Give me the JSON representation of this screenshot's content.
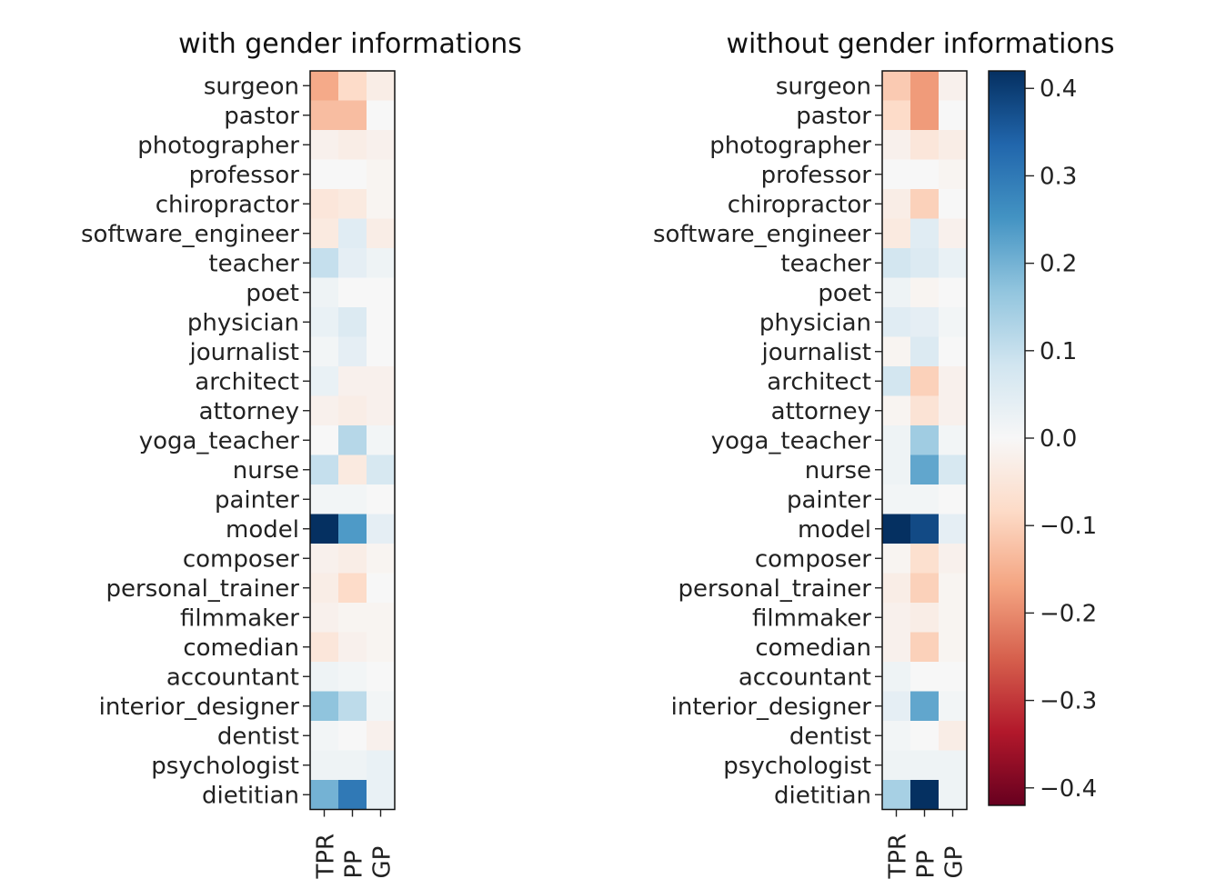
{
  "chart_data": [
    {
      "type": "heatmap",
      "title": "with gender informations",
      "x": [
        "TPR",
        "PP",
        "GP"
      ],
      "y": [
        "surgeon",
        "pastor",
        "photographer",
        "professor",
        "chiropractor",
        "software_engineer",
        "teacher",
        "poet",
        "physician",
        "journalist",
        "architect",
        "attorney",
        "yoga_teacher",
        "nurse",
        "painter",
        "model",
        "composer",
        "personal_trainer",
        "filmmaker",
        "comedian",
        "accountant",
        "interior_designer",
        "dentist",
        "psychologist",
        "dietitian"
      ],
      "values": [
        [
          -0.16,
          -0.08,
          -0.03
        ],
        [
          -0.13,
          -0.13,
          0.0
        ],
        [
          -0.02,
          -0.03,
          -0.02
        ],
        [
          0.0,
          0.0,
          -0.01
        ],
        [
          -0.05,
          -0.04,
          -0.01
        ],
        [
          -0.04,
          0.05,
          -0.03
        ],
        [
          0.1,
          0.04,
          0.02
        ],
        [
          0.02,
          0.0,
          0.0
        ],
        [
          0.03,
          0.06,
          0.0
        ],
        [
          0.01,
          0.04,
          0.0
        ],
        [
          0.03,
          -0.02,
          -0.02
        ],
        [
          -0.02,
          -0.03,
          -0.02
        ],
        [
          0.0,
          0.12,
          0.01
        ],
        [
          0.1,
          -0.04,
          0.07
        ],
        [
          0.01,
          0.01,
          0.0
        ],
        [
          0.42,
          0.24,
          0.04
        ],
        [
          -0.02,
          -0.03,
          -0.01
        ],
        [
          -0.03,
          -0.08,
          0.0
        ],
        [
          -0.02,
          -0.01,
          -0.01
        ],
        [
          -0.05,
          -0.02,
          -0.01
        ],
        [
          0.02,
          0.01,
          0.0
        ],
        [
          0.17,
          0.11,
          0.01
        ],
        [
          0.01,
          0.0,
          -0.02
        ],
        [
          0.02,
          0.02,
          0.03
        ],
        [
          0.2,
          0.3,
          0.03
        ]
      ],
      "colorbar": false,
      "clim": [
        -0.42,
        0.42
      ],
      "cmap": "RdBu"
    },
    {
      "type": "heatmap",
      "title": "without gender informations",
      "x": [
        "TPR",
        "PP",
        "GP"
      ],
      "y": [
        "surgeon",
        "pastor",
        "photographer",
        "professor",
        "chiropractor",
        "software_engineer",
        "teacher",
        "poet",
        "physician",
        "journalist",
        "architect",
        "attorney",
        "yoga_teacher",
        "nurse",
        "painter",
        "model",
        "composer",
        "personal_trainer",
        "filmmaker",
        "comedian",
        "accountant",
        "interior_designer",
        "dentist",
        "psychologist",
        "dietitian"
      ],
      "values": [
        [
          -0.11,
          -0.18,
          -0.02
        ],
        [
          -0.08,
          -0.18,
          0.0
        ],
        [
          -0.02,
          -0.05,
          -0.03
        ],
        [
          0.0,
          0.0,
          -0.01
        ],
        [
          -0.03,
          -0.1,
          0.0
        ],
        [
          -0.04,
          0.05,
          -0.02
        ],
        [
          0.08,
          0.06,
          0.03
        ],
        [
          0.02,
          -0.01,
          0.0
        ],
        [
          0.05,
          0.04,
          0.01
        ],
        [
          -0.01,
          0.06,
          0.0
        ],
        [
          0.08,
          -0.1,
          -0.02
        ],
        [
          -0.01,
          -0.06,
          -0.02
        ],
        [
          0.02,
          0.15,
          0.01
        ],
        [
          0.02,
          0.22,
          0.07
        ],
        [
          0.01,
          0.01,
          0.0
        ],
        [
          0.42,
          0.38,
          0.04
        ],
        [
          -0.01,
          -0.07,
          -0.02
        ],
        [
          -0.03,
          -0.1,
          -0.01
        ],
        [
          -0.02,
          -0.03,
          -0.01
        ],
        [
          -0.02,
          -0.1,
          -0.01
        ],
        [
          0.02,
          0.0,
          0.0
        ],
        [
          0.04,
          0.22,
          0.01
        ],
        [
          0.01,
          0.0,
          -0.03
        ],
        [
          0.02,
          0.02,
          0.02
        ],
        [
          0.14,
          0.42,
          0.02
        ]
      ],
      "colorbar": true,
      "clim": [
        -0.42,
        0.42
      ],
      "cmap": "RdBu",
      "colorbar_ticks": [
        0.4,
        0.3,
        0.2,
        0.1,
        0.0,
        -0.1,
        -0.2,
        -0.3,
        -0.4
      ],
      "colorbar_tick_labels": [
        "0.4",
        "0.3",
        "0.2",
        "0.1",
        "0.0",
        "−0.1",
        "−0.2",
        "−0.3",
        "−0.4"
      ]
    }
  ]
}
